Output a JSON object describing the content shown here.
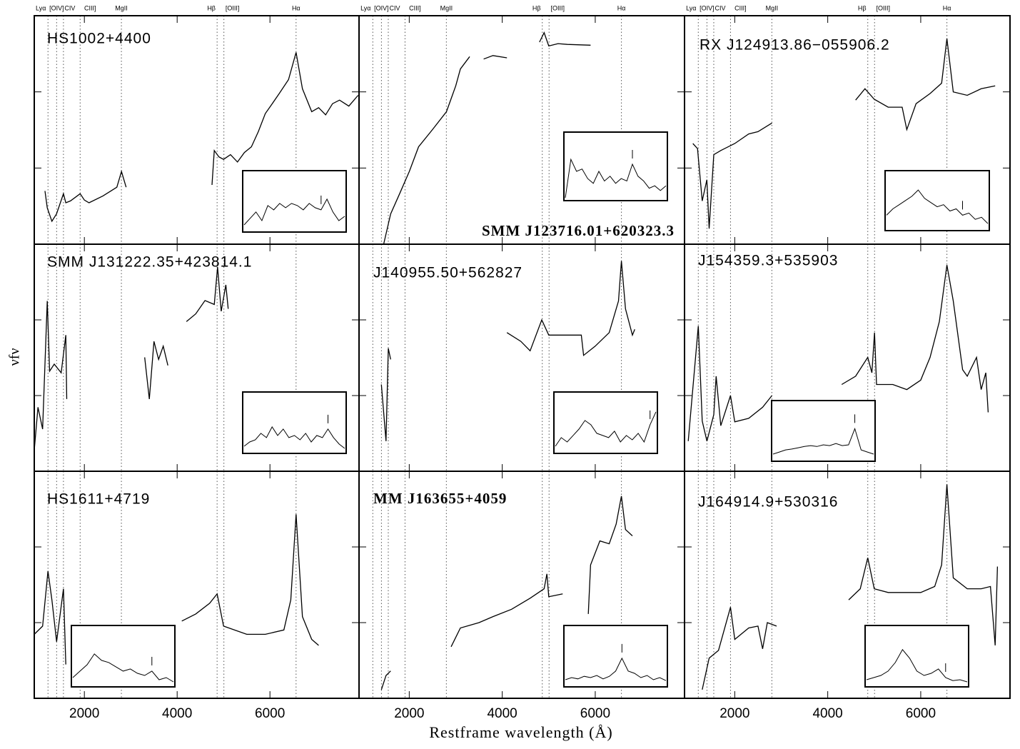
{
  "chart_data": {
    "type": "line",
    "xlabel": "Restframe wavelength (Å)",
    "ylabel": "νfν",
    "xlim": [
      920,
      7920
    ],
    "xticks": [
      2000,
      4000,
      6000
    ],
    "ylim": [
      1,
      1000
    ],
    "yticks": [
      10,
      100
    ],
    "log_y": true,
    "color": "#000000",
    "lines": [
      {
        "name": "Lyα",
        "wavelength": 1216
      },
      {
        "name": "[OIV]",
        "wavelength": 1402
      },
      {
        "name": "CIV",
        "wavelength": 1549
      },
      {
        "name": "CIII]",
        "wavelength": 1909
      },
      {
        "name": "MgII",
        "wavelength": 2798
      },
      {
        "name": "Hβ",
        "wavelength": 4861
      },
      {
        "name": "[OIII]",
        "wavelength": 5007
      },
      {
        "name": "Hα",
        "wavelength": 6563
      }
    ],
    "panels": [
      {
        "name": "HS1002+4400",
        "x": [
          1150,
          1200,
          1300,
          1400,
          1549,
          1600,
          1700,
          1909,
          2000,
          2100,
          2400,
          2700,
          2800,
          2900,
          3000,
          4750,
          4800,
          4900,
          5000,
          5150,
          5300,
          5450,
          5600,
          5750,
          5900,
          6050,
          6200,
          6400,
          6563,
          6700,
          6900,
          7050,
          7200,
          7350,
          7500,
          7700,
          7900
        ],
        "values": [
          5,
          3,
          2,
          2.5,
          4.6,
          3.5,
          3.7,
          4.6,
          3.8,
          3.5,
          4.3,
          5.6,
          9,
          5.6,
          null,
          6,
          17,
          14,
          13,
          15,
          12,
          16,
          19,
          30,
          52,
          70,
          95,
          145,
          330,
          110,
          55,
          62,
          50,
          70,
          78,
          65,
          90
        ],
        "inset": {
          "values": [
            10,
            25,
            40,
            20,
            55,
            45,
            60,
            50,
            60,
            55,
            45,
            60,
            50,
            45,
            70,
            40,
            20,
            30
          ],
          "marker": 13
        }
      },
      {
        "name": "SMM J123716.01+620323.3",
        "label_font": "serif",
        "x": [
          1450,
          1600,
          1800,
          2000,
          2200,
          2500,
          2800,
          3000,
          3100,
          3300,
          3400,
          3600,
          3800,
          4100,
          4200,
          4800,
          4900,
          5000,
          5200,
          5400,
          5900
        ],
        "values": [
          1,
          2.5,
          4.7,
          9,
          19,
          32,
          55,
          120,
          200,
          290,
          null,
          270,
          300,
          280,
          null,
          450,
          600,
          400,
          430,
          420,
          410
        ],
        "inset": {
          "values": [
            0,
            80,
            55,
            60,
            40,
            30,
            55,
            35,
            45,
            30,
            40,
            35,
            70,
            45,
            35,
            20,
            25,
            15,
            25
          ],
          "marker": 12
        }
      },
      {
        "name": "RX J124913.86−055906.2",
        "x": [
          1100,
          1200,
          1300,
          1400,
          1450,
          1550,
          1700,
          2000,
          2300,
          2500,
          2800,
          2900,
          4600,
          4800,
          5000,
          5300,
          5600,
          5700,
          5900,
          6200,
          6450,
          6563,
          6700,
          7000,
          7300,
          7600
        ],
        "values": [
          21,
          18,
          3.7,
          7,
          1.6,
          15,
          17,
          21,
          28,
          30,
          39,
          null,
          78,
          110,
          80,
          63,
          63,
          32,
          70,
          95,
          130,
          500,
          100,
          90,
          110,
          120
        ],
        "inset": {
          "values": [
            30,
            45,
            55,
            65,
            75,
            90,
            70,
            60,
            50,
            55,
            40,
            45,
            30,
            35,
            20,
            25,
            10
          ],
          "marker": 12
        }
      },
      {
        "name": "SMM J131222.35+423814.1",
        "x": [
          920,
          1000,
          1100,
          1200,
          1250,
          1350,
          1500,
          1600,
          1620,
          2000,
          3300,
          3400,
          3500,
          3600,
          3700,
          3800,
          3900,
          4200,
          4400,
          4600,
          4800,
          4870,
          4950,
          5050,
          5100
        ],
        "values": [
          1.9,
          7,
          3.6,
          178,
          21,
          26,
          20,
          63,
          9,
          null,
          32,
          9,
          52,
          30,
          45,
          25,
          null,
          95,
          120,
          180,
          160,
          500,
          130,
          290,
          140
        ],
        "inset": {
          "values": [
            10,
            20,
            25,
            40,
            30,
            55,
            35,
            50,
            30,
            35,
            25,
            40,
            20,
            35,
            30,
            50,
            30,
            15,
            5
          ],
          "marker": 15
        }
      },
      {
        "name": "J140955.50+562827",
        "x": [
          1400,
          1500,
          1550,
          1600,
          1700,
          4100,
          4400,
          4600,
          4850,
          5000,
          5200,
          5700,
          5750,
          6000,
          6300,
          6500,
          6563,
          6650,
          6800,
          6850
        ],
        "values": [
          14,
          2.5,
          42,
          30,
          null,
          68,
          52,
          39,
          100,
          63,
          63,
          63,
          34,
          45,
          68,
          178,
          600,
          140,
          63,
          75
        ],
        "inset": {
          "values": [
            10,
            30,
            20,
            35,
            50,
            70,
            60,
            40,
            35,
            30,
            45,
            20,
            35,
            25,
            40,
            20,
            60,
            90
          ],
          "marker": 16
        }
      },
      {
        "name": "J154359.3+535903",
        "x": [
          1000,
          1216,
          1300,
          1402,
          1549,
          1600,
          1700,
          1909,
          2000,
          2300,
          2600,
          2800,
          3000,
          4300,
          4600,
          4861,
          4950,
          5007,
          5050,
          5400,
          5700,
          6000,
          6200,
          6400,
          6563,
          6700,
          6900,
          7000,
          7200,
          7300,
          7400,
          7450
        ],
        "values": [
          2.5,
          83,
          4.6,
          2.5,
          5.6,
          18,
          4,
          10,
          4.5,
          5,
          7,
          10,
          null,
          14,
          18,
          32,
          20,
          68,
          14,
          14,
          12,
          16,
          32,
          95,
          530,
          178,
          22,
          18,
          32,
          12,
          20,
          6
        ],
        "inset": {
          "values": [
            10,
            15,
            20,
            22,
            25,
            28,
            30,
            28,
            32,
            30,
            35,
            30,
            32,
            70,
            20,
            15,
            10
          ],
          "marker": 13
        }
      },
      {
        "name": "HS1611+4719",
        "x": [
          920,
          1100,
          1216,
          1300,
          1402,
          1549,
          1600,
          2000,
          4100,
          4400,
          4700,
          4861,
          5000,
          5500,
          5900,
          6300,
          6450,
          6563,
          6700,
          6900,
          7050
        ],
        "values": [
          7,
          9,
          48,
          20,
          5.6,
          28,
          2.8,
          null,
          10.5,
          13,
          18,
          24,
          9,
          7,
          7,
          8,
          20,
          270,
          12,
          6,
          5
        ],
        "inset": {
          "values": [
            15,
            30,
            45,
            70,
            55,
            50,
            40,
            30,
            35,
            25,
            20,
            30,
            10,
            15,
            5
          ],
          "marker": 11
        }
      },
      {
        "name": "MM J163655+4059",
        "label_font": "serif",
        "x": [
          1400,
          1500,
          1600,
          2000,
          2900,
          3100,
          3500,
          3800,
          4200,
          4600,
          4900,
          4960,
          5000,
          5300,
          5500,
          5850,
          5900,
          6100,
          6300,
          6450,
          6563,
          6650,
          6800
        ],
        "values": [
          1.3,
          2,
          2.3,
          null,
          4.8,
          8.5,
          10,
          12,
          15,
          21,
          28,
          44,
          22,
          24,
          null,
          13,
          58,
          120,
          110,
          200,
          470,
          170,
          140
        ],
        "inset": {
          "values": [
            10,
            15,
            12,
            18,
            15,
            20,
            12,
            18,
            30,
            60,
            30,
            25,
            15,
            20,
            10,
            15,
            8
          ],
          "marker": 9
        }
      },
      {
        "name": "J164914.9+530316",
        "x": [
          1300,
          1450,
          1650,
          1909,
          2000,
          2300,
          2500,
          2600,
          2700,
          2900,
          3000,
          4450,
          4700,
          4861,
          5000,
          5300,
          6000,
          6300,
          6450,
          6563,
          6700,
          7000,
          7300,
          7500,
          7600,
          7650
        ],
        "values": [
          1.3,
          3.4,
          4.3,
          16,
          6,
          8.5,
          9,
          4.5,
          10,
          9,
          null,
          20,
          28,
          72,
          28,
          25,
          25,
          30,
          58,
          670,
          39,
          28,
          28,
          30,
          5,
          55
        ],
        "inset": {
          "values": [
            10,
            15,
            20,
            30,
            50,
            80,
            60,
            30,
            20,
            25,
            35,
            15,
            8,
            10,
            5
          ],
          "marker": 11
        }
      }
    ]
  }
}
